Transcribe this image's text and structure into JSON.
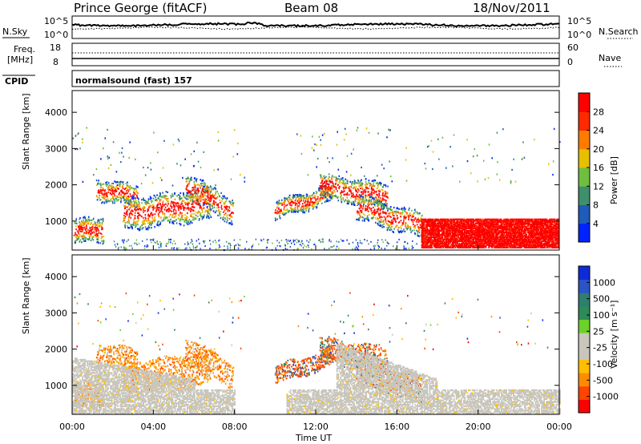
{
  "header": {
    "station": "Prince George (fitACF)",
    "beam": "Beam 08",
    "date": "18/Nov/2011"
  },
  "noise_panel": {
    "left_label": "N.Sky",
    "right_label": "N.Search",
    "left_ticks": [
      "10^5",
      "10^0"
    ],
    "right_ticks": [
      "10^5",
      "10^0"
    ]
  },
  "freq_panel": {
    "left_label_1": "Freq.",
    "left_label_2": "[MHz]",
    "left_ticks": [
      "18",
      "8"
    ],
    "right_label": "Nave",
    "right_ticks": [
      "60",
      "0"
    ]
  },
  "cpid_panel": {
    "label": "CPID",
    "text": "normalsound (fast) 157"
  },
  "colors": {
    "power_scale": [
      "#0022ff",
      "#1f5bb8",
      "#3f8f6d",
      "#6fbf3f",
      "#e6c000",
      "#ff7b00",
      "#ff2a00",
      "#ff0000"
    ],
    "velocity_scale": [
      "#ff0000",
      "#ff4500",
      "#ff8c00",
      "#ffbf00",
      "#c8c6bd",
      "#c8c6bd",
      "#6cd12a",
      "#2e8b57",
      "#2f7f6f",
      "#2a55c7",
      "#0f2bd8"
    ]
  },
  "chart_data": [
    {
      "type": "heatmap",
      "panel": "power",
      "ylabel": "Slant Range [km]",
      "yticks": [
        "1000",
        "2000",
        "3000",
        "4000"
      ],
      "ylim": [
        200,
        4600
      ],
      "xlim": [
        0,
        24
      ],
      "xlabel": "Time UT",
      "xticks": [
        "00:00",
        "04:00",
        "08:00",
        "12:00",
        "16:00",
        "20:00",
        "00:00"
      ],
      "colorbar_label": "Power [dB]",
      "colorbar_ticks": [
        "4",
        "8",
        "12",
        "16",
        "20",
        "24",
        "28"
      ],
      "colorbar_range": [
        0,
        32
      ]
    },
    {
      "type": "heatmap",
      "panel": "velocity",
      "ylabel": "Slant Range [km]",
      "yticks": [
        "1000",
        "2000",
        "3000",
        "4000"
      ],
      "ylim": [
        200,
        4600
      ],
      "xlim": [
        0,
        24
      ],
      "xlabel": "Time UT",
      "xticks": [
        "00:00",
        "04:00",
        "08:00",
        "12:00",
        "16:00",
        "20:00",
        "00:00"
      ],
      "colorbar_label": "Velocity [m s⁻¹]",
      "colorbar_ticks": [
        "1000",
        "500",
        "100",
        "25",
        "-25",
        "-100",
        "-500",
        "-1000"
      ]
    }
  ]
}
